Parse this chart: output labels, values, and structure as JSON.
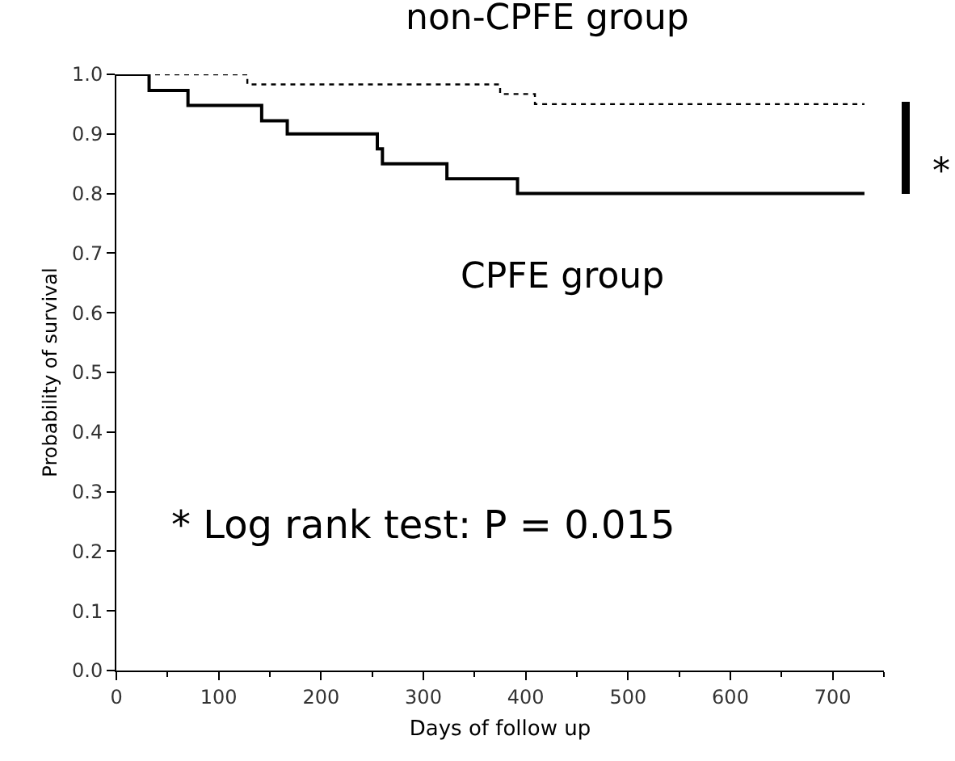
{
  "chart_data": {
    "type": "step",
    "xlabel": "Days of follow up",
    "ylabel": "Probability of survival",
    "series": [
      {
        "name": "non-CPFE group",
        "color": "#000000",
        "line_style": "dotted",
        "x": [
          0,
          128,
          375,
          409,
          731
        ],
        "values": [
          1.0,
          0.983,
          0.967,
          0.95,
          0.95
        ]
      },
      {
        "name": "CPFE group",
        "color": "#000000",
        "line_style": "solid",
        "x": [
          0,
          32,
          70,
          142,
          167,
          255,
          260,
          323,
          392,
          731
        ],
        "values": [
          1.0,
          0.973,
          0.948,
          0.922,
          0.9,
          0.875,
          0.85,
          0.825,
          0.8,
          0.8
        ]
      }
    ],
    "xlim": [
      0,
      750
    ],
    "xticks": [
      0,
      100,
      200,
      300,
      400,
      500,
      600,
      700
    ],
    "ylim": [
      0,
      1
    ],
    "yticks": [
      {
        "value": 0,
        "label": "0.0"
      },
      0.1,
      0.2,
      0.3,
      0.4,
      0.5,
      0.6,
      0.7,
      0.8,
      0.9,
      {
        "value": 1,
        "label": "1.0"
      }
    ],
    "grid": false,
    "legend": false,
    "marker": "none",
    "annotations": [
      "* Log rank test: P = 0.015",
      "*"
    ]
  }
}
